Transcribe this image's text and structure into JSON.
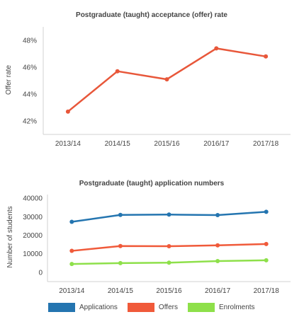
{
  "chart_data": [
    {
      "type": "line",
      "title": "Postgraduate (taught) acceptance (offer) rate",
      "ylabel": "Offer rate",
      "xlabel": "",
      "categories": [
        "2013/14",
        "2014/15",
        "2015/16",
        "2016/17",
        "2017/18"
      ],
      "series": [
        {
          "values": [
            42.7,
            45.7,
            45.1,
            47.4,
            46.8
          ],
          "color": "#e8573a"
        }
      ],
      "ylim": [
        41,
        49
      ],
      "yticks": [
        42,
        44,
        46,
        48
      ],
      "ytick_labels": [
        "42%",
        "44%",
        "46%",
        "48%"
      ],
      "grid": false,
      "legend": "none"
    },
    {
      "type": "line",
      "title": "Postgraduate (taught) application numbers",
      "ylabel": "Number of students",
      "xlabel": "",
      "categories": [
        "2013/14",
        "2014/15",
        "2015/16",
        "2016/17",
        "2017/18"
      ],
      "series": [
        {
          "name": "Applications",
          "values": [
            27300,
            31000,
            31200,
            30900,
            32700
          ],
          "color": "#2475b0"
        },
        {
          "name": "Offers",
          "values": [
            11600,
            14200,
            14100,
            14600,
            15300
          ],
          "color": "#f05a3a"
        },
        {
          "name": "Enrolments",
          "values": [
            4500,
            5000,
            5200,
            6100,
            6500
          ],
          "color": "#8ee04a"
        }
      ],
      "ylim": [
        -5000,
        42000
      ],
      "yticks": [
        0,
        10000,
        20000,
        30000,
        40000
      ],
      "ytick_labels": [
        "0",
        "10000",
        "20000",
        "30000",
        "40000"
      ],
      "grid": false,
      "legend": "bottom"
    }
  ]
}
